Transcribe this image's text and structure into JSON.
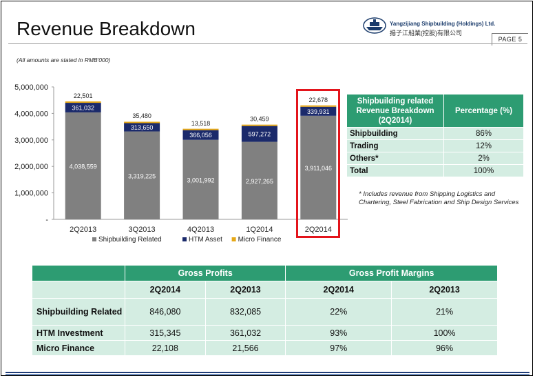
{
  "title": "Revenue Breakdown",
  "page_label": "PAGE 5",
  "company": {
    "name_en": "Yangzijiang Shipbuilding (Holdings) Ltd.",
    "name_cn": "揚子江船業(控股)有限公司"
  },
  "note": "(All amounts are stated in RMB'000)",
  "colors": {
    "shipbuilding": "#808080",
    "htm": "#1b2a6b",
    "micro": "#e6a817",
    "accent": "#2d9c72",
    "light": "#d4ede2",
    "highlight": "#e3141b"
  },
  "chart_data": {
    "type": "bar",
    "stacked": true,
    "categories": [
      "2Q2013",
      "3Q2013",
      "4Q2013",
      "1Q2014",
      "2Q2014"
    ],
    "series": [
      {
        "name": "Shipbuilding Related",
        "values": [
          4038559,
          3319225,
          3001992,
          2927265,
          3911046
        ]
      },
      {
        "name": "HTM Asset",
        "values": [
          361032,
          313650,
          366056,
          597272,
          339931
        ]
      },
      {
        "name": "Micro Finance",
        "values": [
          22501,
          35480,
          13518,
          30459,
          22678
        ]
      }
    ],
    "data_labels": {
      "Shipbuilding Related": [
        "4,038,559",
        "3,319,225",
        "3,001,992",
        "2,927,265",
        "3,911,046"
      ],
      "HTM Asset": [
        "361,032",
        "313,650",
        "366,056",
        "597,272",
        "339,931"
      ],
      "Micro Finance": [
        "22,501",
        "35,480",
        "13,518",
        "30,459",
        "22,678"
      ]
    },
    "y_ticks": [
      "-",
      "1,000,000",
      "2,000,000",
      "3,000,000",
      "4,000,000",
      "5,000,000"
    ],
    "ylim": [
      0,
      5000000
    ],
    "highlighted_category": "2Q2014",
    "legend_position": "bottom"
  },
  "revenue_table": {
    "headers": [
      "Shipbuilding related Revenue Breakdown (2Q2014)",
      "Percentage (%)"
    ],
    "rows": [
      {
        "label": "Shipbuilding",
        "value": "86%"
      },
      {
        "label": "Trading",
        "value": "12%"
      },
      {
        "label": "Others*",
        "value": "2%"
      },
      {
        "label": "Total",
        "value": "100%"
      }
    ]
  },
  "footnote": "* Includes revenue from Shipping Logistics and Chartering, Steel Fabrication and Ship Design Services",
  "gross_table": {
    "group_headers": [
      "Gross Profits",
      "Gross Profit Margins"
    ],
    "sub_headers": [
      "2Q2014",
      "2Q2013",
      "2Q2014",
      "2Q2013"
    ],
    "rows": [
      {
        "label": "Shipbuilding Related",
        "values": [
          "846,080",
          "832,085",
          "22%",
          "21%"
        ]
      },
      {
        "label": "HTM Investment",
        "values": [
          "315,345",
          "361,032",
          "93%",
          "100%"
        ]
      },
      {
        "label": "Micro Finance",
        "values": [
          "22,108",
          "21,566",
          "97%",
          "96%"
        ]
      }
    ]
  }
}
